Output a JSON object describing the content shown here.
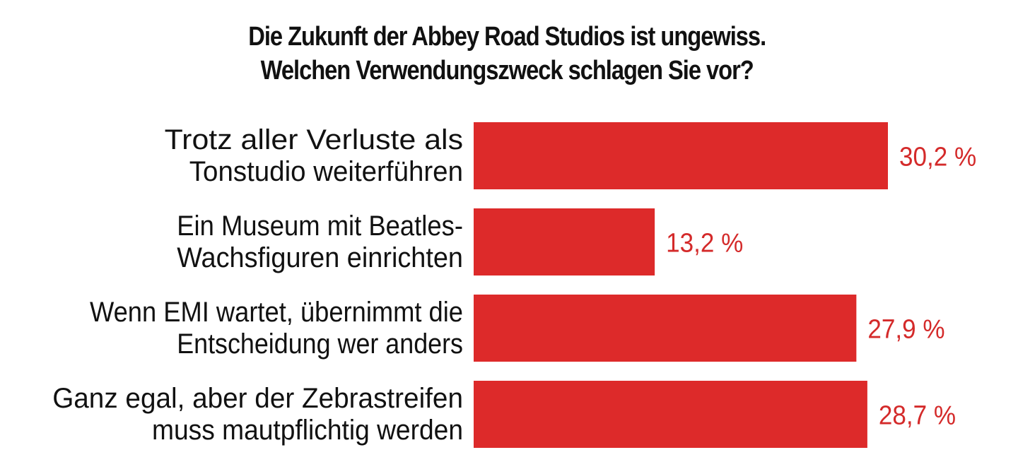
{
  "chart_data": {
    "type": "bar",
    "orientation": "horizontal",
    "title_lines": [
      "Die Zukunft der Abbey Road Studios ist ungewiss.",
      "Welchen Verwendungszweck schlagen Sie vor?"
    ],
    "categories": [
      [
        "Trotz aller Verluste als",
        "Tonstudio weiterführen"
      ],
      [
        "Ein Museum mit Beatles-",
        "Wachsfiguren einrichten"
      ],
      [
        "Wenn EMI wartet, übernimmt die",
        "Entscheidung wer anders"
      ],
      [
        "Ganz egal, aber der Zebrastreifen",
        "muss mautpflichtig werden"
      ]
    ],
    "values": [
      30.2,
      13.2,
      27.9,
      28.7
    ],
    "value_labels": [
      "30,2 %",
      "13,2 %",
      "27,9 %",
      "28,7 %"
    ],
    "unit": "%",
    "bar_color": "#dd2a2a",
    "value_label_color": "#d42a2a",
    "xlim": [
      0,
      30.2
    ],
    "grid": false,
    "legend": false
  }
}
